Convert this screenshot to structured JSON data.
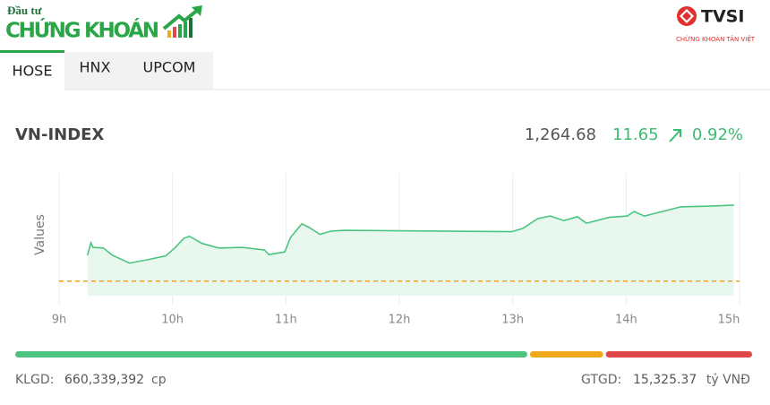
{
  "header": {
    "logo_top": "Đầu tư",
    "logo_main": "CHỨNG KHOÁN",
    "partner": "TVSI",
    "partner_sub": "CHỨNG KHOÁN TÂN VIỆT"
  },
  "tabs": [
    "HOSE",
    "HNX",
    "UPCOM"
  ],
  "active_tab": 0,
  "index": {
    "name": "VN-INDEX",
    "value": "1,264.68",
    "change": "11.65",
    "change_pct": "0.92%"
  },
  "chart_data": {
    "type": "line",
    "y_label": "Values",
    "color": "#4cc47f",
    "fill": "#e9f8ef",
    "x": [
      9.25,
      9.28,
      9.3,
      9.39,
      9.47,
      9.62,
      9.78,
      9.94,
      10.02,
      10.1,
      10.15,
      10.26,
      10.41,
      10.61,
      10.81,
      10.85,
      10.99,
      11.04,
      11.14,
      11.2,
      11.3,
      11.4,
      11.51,
      12.99,
      13.09,
      13.22,
      13.33,
      13.45,
      13.57,
      13.65,
      13.85,
      14.01,
      14.07,
      14.16,
      14.32,
      14.48,
      14.71,
      14.95
    ],
    "values": [
      1257.0,
      1258.9,
      1258.2,
      1258.1,
      1257.0,
      1255.8,
      1256.3,
      1256.9,
      1258.1,
      1259.6,
      1259.9,
      1258.8,
      1258.1,
      1258.2,
      1257.8,
      1257.1,
      1257.5,
      1259.7,
      1261.8,
      1261.3,
      1260.2,
      1260.7,
      1260.8,
      1260.6,
      1261.1,
      1262.6,
      1263.0,
      1262.3,
      1262.9,
      1261.9,
      1262.8,
      1263.0,
      1263.7,
      1263.0,
      1263.7,
      1264.4,
      1264.5,
      1264.68
    ],
    "reference_line": 1253.03,
    "reference_color": "#f0a020",
    "xlim": [
      9,
      15
    ],
    "ylim": [
      1250.8,
      1269.6
    ],
    "xticks": [
      {
        "value": 9,
        "label": "9h"
      },
      {
        "value": 10,
        "label": "10h"
      },
      {
        "value": 11,
        "label": "11h"
      },
      {
        "value": 12,
        "label": "12h"
      },
      {
        "value": 13,
        "label": "13h"
      },
      {
        "value": 14,
        "label": "14h"
      },
      {
        "value": 15,
        "label": "15h"
      }
    ],
    "grid": true
  },
  "market_breadth": {
    "values": [
      70,
      10,
      20
    ],
    "colors": [
      "#4cc47f",
      "#f0a81c",
      "#e04848"
    ]
  },
  "footer": {
    "volume_label": "KLGD:",
    "volume": "660,339,392",
    "volume_unit": "cp",
    "value_label": "GTGD:",
    "value": "15,325.37",
    "value_unit": "tỷ VNĐ"
  }
}
